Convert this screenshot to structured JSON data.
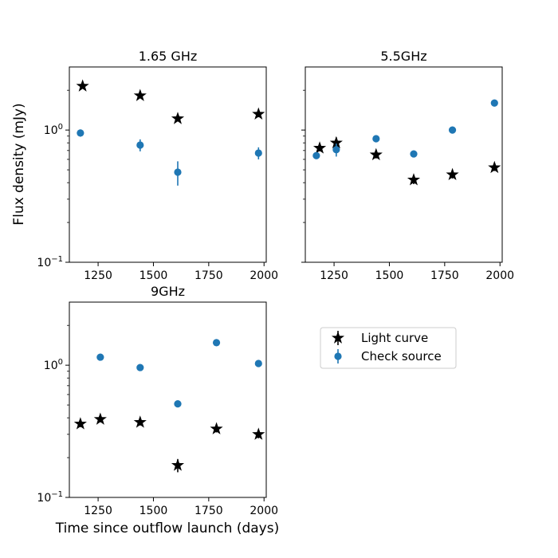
{
  "figure": {
    "xlabel": "Time since outflow launch (days)",
    "ylabel": "Flux density (mJy)"
  },
  "legend": {
    "entries": [
      {
        "label": "Light curve",
        "marker": "star",
        "color": "#000000"
      },
      {
        "label": "Check source",
        "marker": "circle",
        "color": "#1f77b4"
      }
    ]
  },
  "chart_data": [
    {
      "type": "scatter",
      "title": "1.65 GHz",
      "xlim": [
        1120,
        2010
      ],
      "ylim": [
        0.1,
        3.0
      ],
      "yscale": "log",
      "xticks": [
        1250,
        1500,
        1750,
        2000
      ],
      "xtick_labels": [
        "1250",
        "1500",
        "1750",
        "2000"
      ],
      "yticks": [
        0.1,
        1.0
      ],
      "ytick_labels": [
        "10^-1",
        "10^0"
      ],
      "show_yticklabels": true,
      "show_xticklabels": true,
      "series": [
        {
          "name": "Light curve",
          "marker": "star",
          "color": "#000000",
          "x": [
            1180,
            1440,
            1610,
            1975
          ],
          "y": [
            2.15,
            1.82,
            1.22,
            1.32
          ],
          "yerr": [
            0.06,
            0.07,
            0.06,
            0.07
          ]
        },
        {
          "name": "Check source",
          "marker": "circle",
          "color": "#1f77b4",
          "x": [
            1170,
            1440,
            1610,
            1975
          ],
          "y": [
            0.95,
            0.77,
            0.48,
            0.67
          ],
          "yerr": [
            0.06,
            0.08,
            0.1,
            0.07
          ]
        }
      ]
    },
    {
      "type": "scatter",
      "title": "5.5GHz",
      "xlim": [
        1120,
        2010
      ],
      "ylim": [
        0.1,
        3.0
      ],
      "yscale": "log",
      "xticks": [
        1250,
        1500,
        1750,
        2000
      ],
      "xtick_labels": [
        "1250",
        "1500",
        "1750",
        "2000"
      ],
      "yticks": [
        0.1,
        1.0
      ],
      "ytick_labels": [
        "10^-1",
        "10^0"
      ],
      "show_yticklabels": false,
      "show_xticklabels": true,
      "series": [
        {
          "name": "Light curve",
          "marker": "star",
          "color": "#000000",
          "x": [
            1185,
            1260,
            1440,
            1610,
            1785,
            1975
          ],
          "y": [
            0.73,
            0.8,
            0.65,
            0.42,
            0.46,
            0.52
          ],
          "yerr": [
            0.04,
            0.08,
            0.04,
            0.03,
            0.03,
            0.03
          ]
        },
        {
          "name": "Check source",
          "marker": "circle",
          "color": "#1f77b4",
          "x": [
            1170,
            1260,
            1440,
            1610,
            1785,
            1975
          ],
          "y": [
            0.64,
            0.71,
            0.86,
            0.66,
            1.0,
            1.6
          ],
          "yerr": [
            0.03,
            0.08,
            0.04,
            0.04,
            0.04,
            0.06
          ]
        }
      ]
    },
    {
      "type": "scatter",
      "title": "9GHz",
      "xlim": [
        1120,
        2010
      ],
      "ylim": [
        0.1,
        3.0
      ],
      "yscale": "log",
      "xticks": [
        1250,
        1500,
        1750,
        2000
      ],
      "xtick_labels": [
        "1250",
        "1500",
        "1750",
        "2000"
      ],
      "yticks": [
        0.1,
        1.0
      ],
      "ytick_labels": [
        "10^-1",
        "10^0"
      ],
      "show_yticklabels": true,
      "show_xticklabels": true,
      "series": [
        {
          "name": "Light curve",
          "marker": "star",
          "color": "#000000",
          "x": [
            1170,
            1260,
            1440,
            1610,
            1785,
            1975
          ],
          "y": [
            0.36,
            0.39,
            0.37,
            0.175,
            0.33,
            0.3
          ],
          "yerr": [
            0.02,
            0.02,
            0.02,
            0.02,
            0.02,
            0.02
          ]
        },
        {
          "name": "Check source",
          "marker": "circle",
          "color": "#1f77b4",
          "x": [
            1260,
            1440,
            1610,
            1785,
            1975
          ],
          "y": [
            1.15,
            0.96,
            0.51,
            1.48,
            1.03
          ],
          "yerr": [
            0.03,
            0.03,
            0.02,
            0.04,
            0.03
          ]
        }
      ]
    }
  ]
}
